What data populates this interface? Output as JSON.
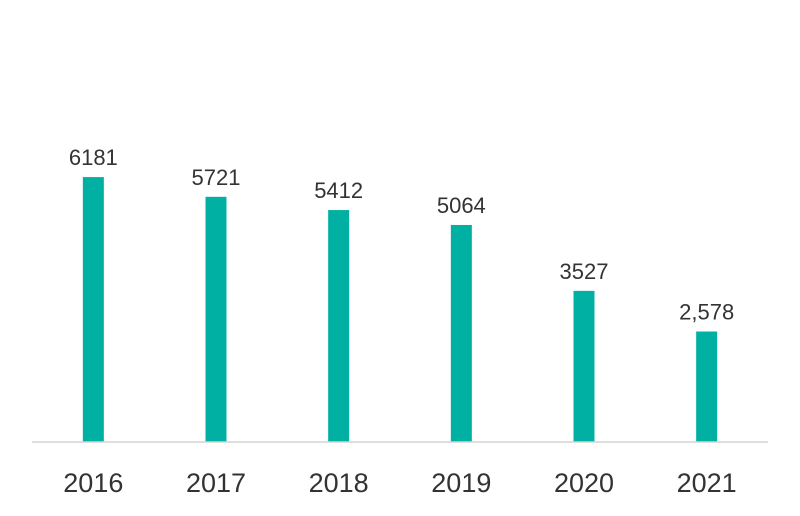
{
  "chart_data": {
    "type": "bar",
    "categories": [
      "2016",
      "2017",
      "2018",
      "2019",
      "2020",
      "2021"
    ],
    "values": [
      6181,
      5721,
      5412,
      5064,
      3527,
      2578
    ],
    "data_labels": [
      "6181",
      "5721",
      "5412",
      "5064",
      "3527",
      "2,578"
    ],
    "title": "",
    "xlabel": "",
    "ylabel": "",
    "ylim": [
      0,
      7000
    ],
    "grid": false,
    "legend": "none",
    "colors": {
      "bar": "#00b0a2",
      "axis": "#d4d4d4",
      "text": "#333333"
    }
  }
}
